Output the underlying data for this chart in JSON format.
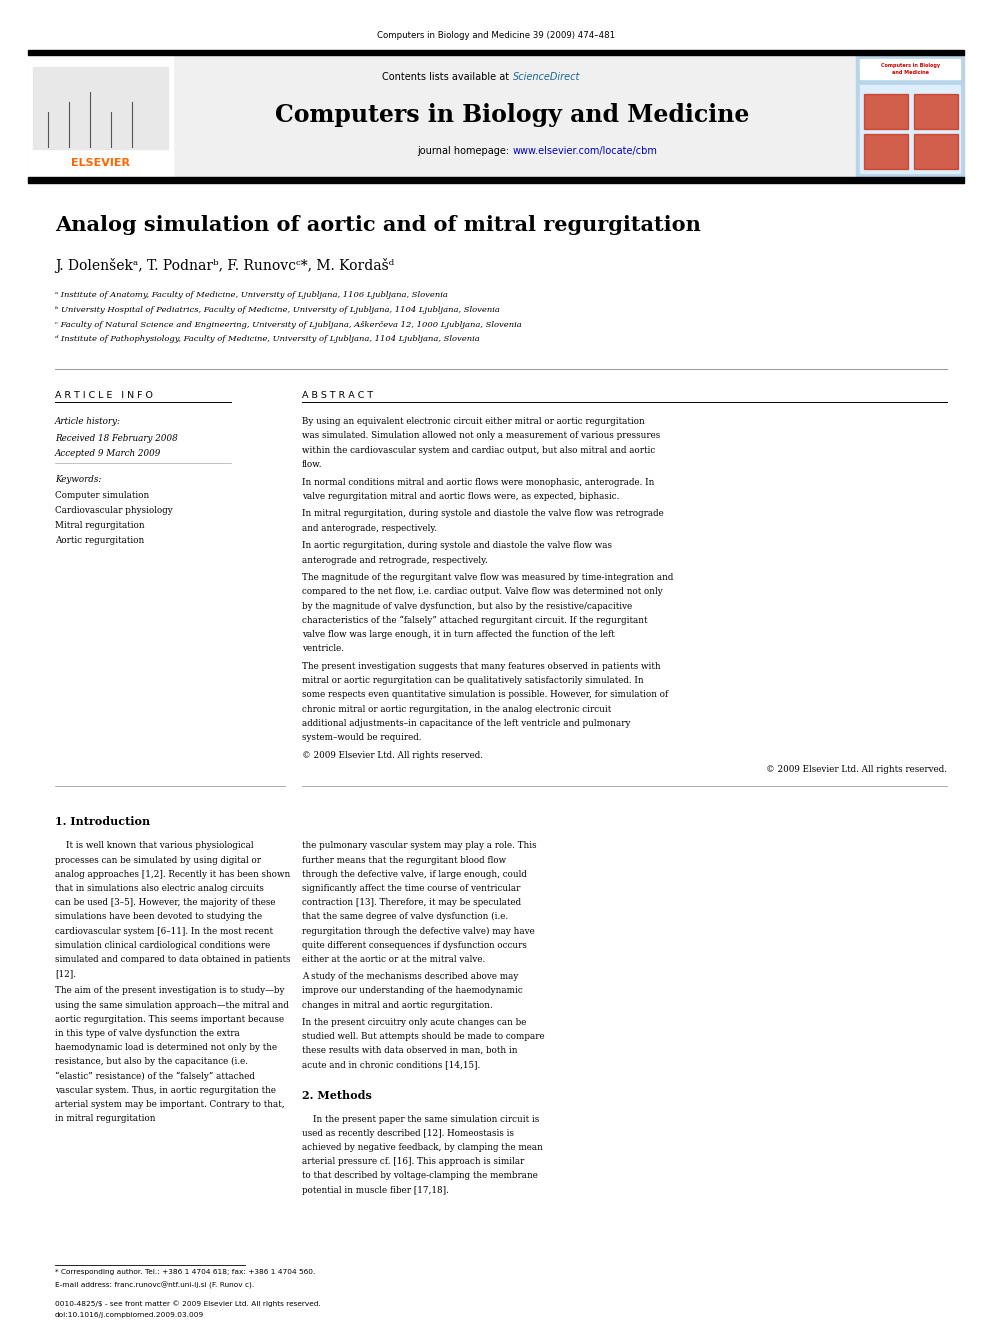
{
  "page_width": 9.92,
  "page_height": 13.23,
  "bg_color": "#ffffff",
  "top_journal_line": "Computers in Biology and Medicine 39 (2009) 474–481",
  "journal_title": "Computers in Biology and Medicine",
  "article_title": "Analog simulation of aortic and of mitral regurgitation",
  "authors": "J. Dolenšekᵃ, T. Podnarᵇ, F. Runovcᶜ*, M. Kordašᵈ",
  "affil_a": "ᵃ Institute of Anatomy, Faculty of Medicine, University of Ljubljana, 1106 Ljubljana, Slovenia",
  "affil_b": "ᵇ University Hospital of Pediatrics, Faculty of Medicine, University of Ljubljana, 1104 Ljubljana, Slovenia",
  "affil_c": "ᶜ Faculty of Natural Science and Engineering, University of Ljubljana, Aškerčeva 12, 1000 Ljubljana, Slovenia",
  "affil_d": "ᵈ Institute of Pathophysiology, Faculty of Medicine, University of Ljubljana, 1104 Ljubljana, Slovenia",
  "article_info_header": "A R T I C L E   I N F O",
  "abstract_header": "A B S T R A C T",
  "article_history_label": "Article history:",
  "received_line": "Received 18 February 2008",
  "accepted_line": "Accepted 9 March 2009",
  "keywords_label": "Keywords:",
  "keyword1": "Computer simulation",
  "keyword2": "Cardiovascular physiology",
  "keyword3": "Mitral regurgitation",
  "keyword4": "Aortic regurgitation",
  "abstract_text": "By using an equivalent electronic circuit either mitral or aortic regurgitation was simulated. Simulation allowed not only a measurement of various pressures within the cardiovascular system and cardiac output, but also mitral and aortic flow.\nIn normal conditions mitral and aortic flows were monophasic, anterograde. In valve regurgitation mitral and aortic flows were, as expected, biphasic.\nIn mitral regurgitation, during systole and diastole the valve flow was retrograde and anterograde, respectively.\nIn aortic regurgitation, during systole and diastole the valve flow was anterograde and retrograde, respectively.\nThe magnitude of the regurgitant valve flow was measured by time-integration and compared to the net flow, i.e. cardiac output. Valve flow was determined not only by the magnitude of valve dysfunction, but also by the resistive/capacitive characteristics of the “falsely” attached regurgitant circuit. If the regurgitant valve flow was large enough, it in turn affected the function of the left ventricle.\nThe present investigation suggests that many features observed in patients with mitral or aortic regurgitation can be qualitatively satisfactorily simulated. In some respects even quantitative simulation is possible. However, for simulation of chronic mitral or aortic regurgitation, in the analog electronic circuit additional adjustments–in capacitance of the left ventricle and pulmonary system–would be required.\n© 2009 Elsevier Ltd. All rights reserved.",
  "section1_title": "1. Introduction",
  "intro_col1": "It is well known that various physiological processes can be simulated by using digital or analog approaches [1,2]. Recently it has been shown that in simulations also electric analog circuits can be used [3–5]. However, the majority of these simulations have been devoted to studying the cardiovascular system [6–11]. In the most recent simulation clinical cardiological conditions were simulated and compared to data obtained in patients [12].\n   The aim of the present investigation is to study—by using the same simulation approach—the mitral and aortic regurgitation. This seems important because in this type of valve dysfunction the extra haemodynamic load is determined not only by the resistance, but also by the capacitance (i.e. “elastic” resistance) of the “falsely” attached vascular system. Thus, in aortic regurgitation the arterial system may be important. Contrary to that, in mitral regurgitation",
  "intro_col2": "the pulmonary vascular system may play a role. This further means that the regurgitant blood flow through the defective valve, if large enough, could significantly affect the time course of ventricular contraction [13]. Therefore, it may be speculated that the same degree of valve dysfunction (i.e. regurgitation through the defective valve) may have quite different consequences if dysfunction occurs either at the aortic or at the mitral valve.\n   A study of the mechanisms described above may improve our understanding of the haemodynamic changes in mitral and aortic regurgitation.\n   In the present circuitry only acute changes can be studied well. But attempts should be made to compare these results with data observed in man, both in acute and in chronic conditions [14,15].",
  "section2_title": "2. Methods",
  "methods_text": "In the present paper the same simulation circuit is used as recently described [12]. Homeostasis is achieved by negative feedback, by clamping the mean arterial pressure cf. [16]. This approach is similar to that described by voltage-clamping the membrane potential in muscle fiber [17,18].",
  "footnote_star": "* Corresponding author. Tel.: +386 1 4704 618; fax: +386 1 4704 560.",
  "footnote_email": "E-mail address: franc.runovc@ntf.uni-lj.si (F. Runov c).",
  "issn_line": "0010-4825/$ - see front matter © 2009 Elsevier Ltd. All rights reserved.",
  "doi_line": "doi:10.1016/j.compbiomed.2009.03.009",
  "elsevier_orange": "#FF6600",
  "sciencedirect_blue": "#1a6496",
  "url_blue": "#0000cc",
  "header_bar_color": "#000000"
}
